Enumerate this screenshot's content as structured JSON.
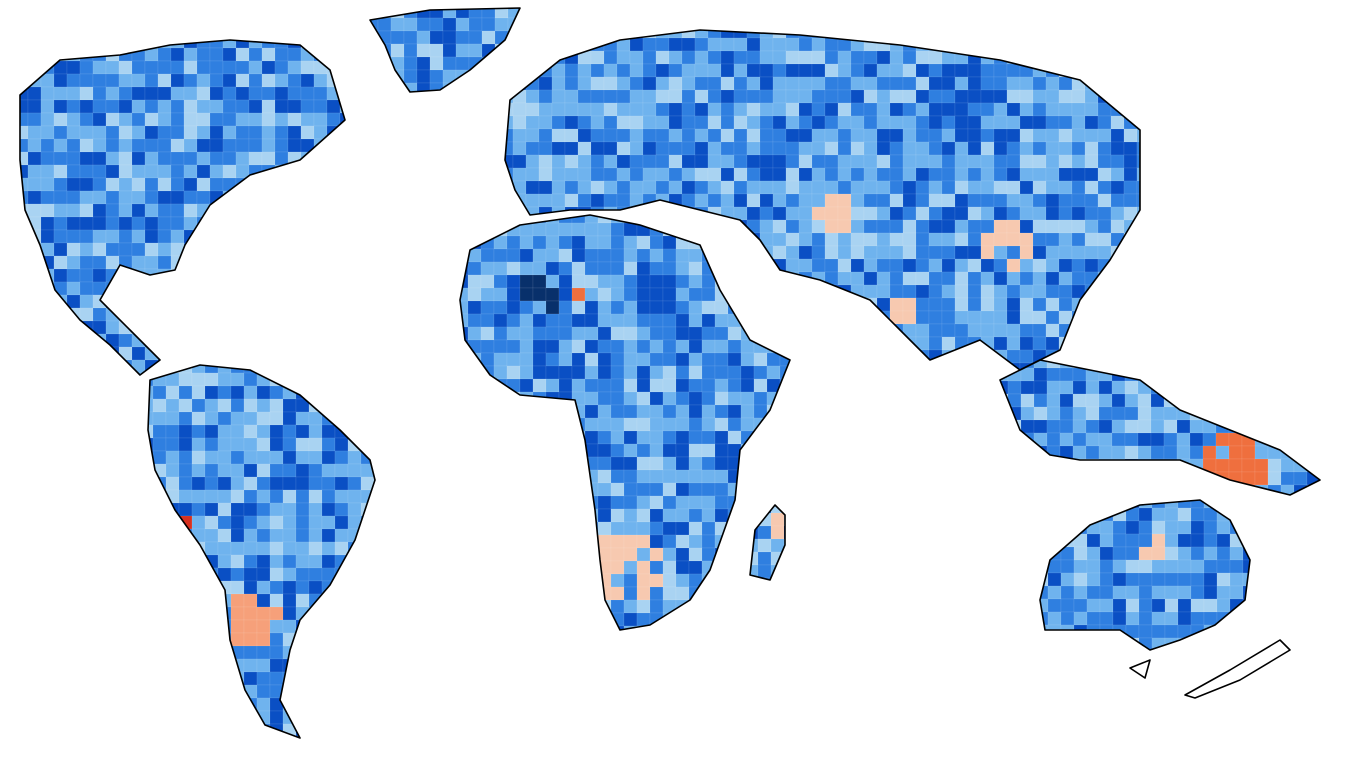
{
  "map": {
    "projection": "Robinson",
    "background_color": "#ffffff",
    "coastline_color": "#000000",
    "colormap": {
      "negative_dark": "#08306b",
      "negative_strong": "#0a4fc4",
      "negative_mid": "#2f7fe0",
      "negative_light": "#6fb3ee",
      "negative_pale": "#a9d3f2",
      "neutral": "#d9dde0",
      "positive_pale": "#f7c9b0",
      "positive_light": "#f6a07a",
      "positive_mid": "#ef6f3e",
      "positive_strong": "#d7301f"
    },
    "grid_cell_visible": true
  }
}
